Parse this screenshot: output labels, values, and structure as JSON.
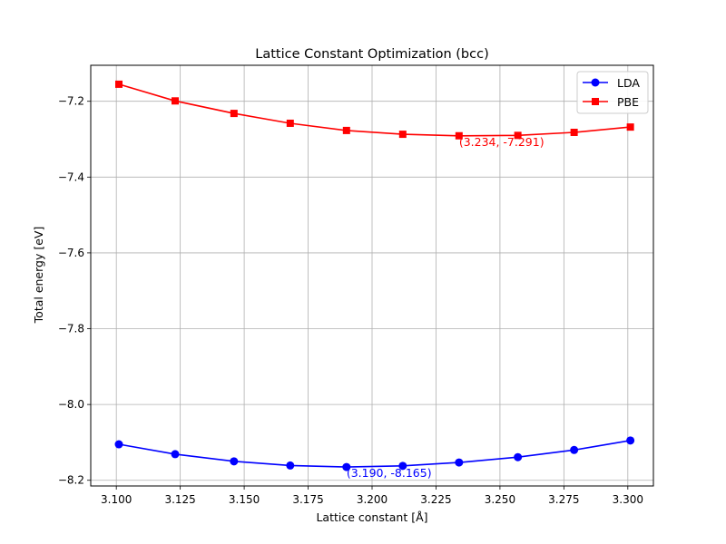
{
  "chart_data": {
    "type": "line",
    "title": "Lattice Constant Optimization (bcc)",
    "xlabel": "Lattice constant [Å]",
    "ylabel": "Total energy [eV]",
    "xlim": [
      3.09,
      3.31
    ],
    "ylim": [
      -8.215,
      -7.105
    ],
    "xticks": [
      3.1,
      3.125,
      3.15,
      3.175,
      3.2,
      3.225,
      3.25,
      3.275,
      3.3
    ],
    "xtick_labels": [
      "3.100",
      "3.125",
      "3.150",
      "3.175",
      "3.200",
      "3.225",
      "3.250",
      "3.275",
      "3.300"
    ],
    "yticks": [
      -8.2,
      -8.0,
      -7.8,
      -7.6,
      -7.4,
      -7.2
    ],
    "ytick_labels": [
      "−8.2",
      "−8.0",
      "−7.8",
      "−7.6",
      "−7.4",
      "−7.2"
    ],
    "grid": true,
    "legend_position": "top-right",
    "series": [
      {
        "name": "LDA",
        "color": "#0000ff",
        "marker": "circle",
        "x": [
          3.101,
          3.123,
          3.146,
          3.168,
          3.19,
          3.212,
          3.234,
          3.257,
          3.279,
          3.301
        ],
        "y": [
          -8.105,
          -8.131,
          -8.15,
          -8.161,
          -8.165,
          -8.162,
          -8.153,
          -8.139,
          -8.12,
          -8.095
        ]
      },
      {
        "name": "PBE",
        "color": "#ff0000",
        "marker": "square",
        "x": [
          3.101,
          3.123,
          3.146,
          3.168,
          3.19,
          3.212,
          3.234,
          3.257,
          3.279,
          3.301
        ],
        "y": [
          -7.155,
          -7.199,
          -7.232,
          -7.258,
          -7.277,
          -7.287,
          -7.291,
          -7.29,
          -7.282,
          -7.268
        ]
      }
    ],
    "annotations": [
      {
        "text": "(3.190, -8.165)",
        "x": 3.19,
        "y": -8.165,
        "color": "#0000ff"
      },
      {
        "text": "(3.234, -7.291)",
        "x": 3.234,
        "y": -7.291,
        "color": "#ff0000"
      }
    ]
  }
}
